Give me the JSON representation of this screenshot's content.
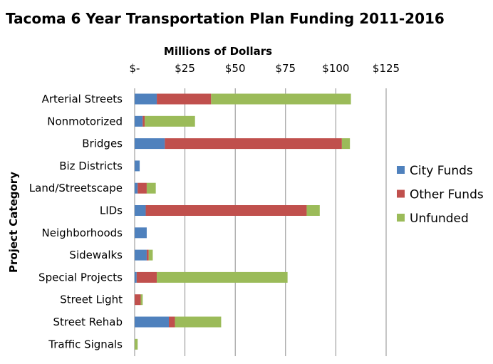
{
  "chart_data": {
    "type": "bar",
    "orientation": "horizontal",
    "stacked": true,
    "title": "Tacoma 6 Year Transportation Plan Funding 2011-2016",
    "xlabel": "Millions of Dollars",
    "ylabel": "Project Category",
    "xlim": [
      0,
      125
    ],
    "x_ticks": [
      0,
      25,
      50,
      75,
      100,
      125
    ],
    "x_tick_labels": [
      "$-",
      "$25",
      "$50",
      "$75",
      "$100",
      "$125"
    ],
    "x_axis_position": "top",
    "grid": true,
    "legend_position": "right",
    "categories": [
      "Arterial Streets",
      "Nonmotorized",
      "Bridges",
      "Biz Districts",
      "Land/Streetscape",
      "LIDs",
      "Neighborhoods",
      "Sidewalks",
      "Special Projects",
      "Street Light",
      "Street Rehab",
      "Traffic Signals"
    ],
    "series": [
      {
        "name": "City Funds",
        "color": "#4f81bd",
        "values": [
          11,
          4,
          15,
          2.5,
          1.5,
          5.5,
          6,
          6,
          1,
          0,
          17,
          0
        ]
      },
      {
        "name": "Other Funds",
        "color": "#c0504d",
        "values": [
          27,
          1,
          88,
          0,
          4.5,
          80,
          0,
          1,
          10,
          3,
          3,
          0
        ]
      },
      {
        "name": "Unfunded",
        "color": "#9bbb59",
        "values": [
          69.5,
          25,
          4,
          0,
          4.5,
          6.5,
          0,
          2,
          65,
          1,
          23,
          1.5
        ]
      }
    ]
  }
}
